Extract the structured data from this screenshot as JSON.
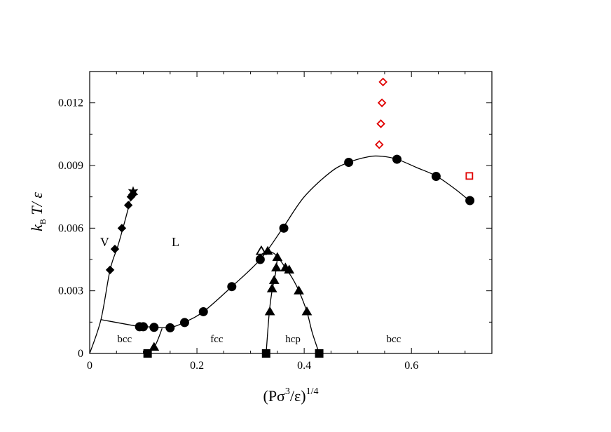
{
  "chart_data": {
    "type": "scatter",
    "title": "",
    "xlabel": {
      "main": "(Pσ",
      "sup1": "3",
      "mid": "/ε)",
      "sup2": "1/4"
    },
    "ylabel": {
      "k": "k",
      "sub": "B",
      "rest": " T/ ε"
    },
    "xlim": [
      0,
      0.75
    ],
    "ylim": [
      0,
      0.0135
    ],
    "x_ticks": [
      {
        "value": 0,
        "label": "0"
      },
      {
        "value": 0.2,
        "label": "0.2"
      },
      {
        "value": 0.4,
        "label": "0.4"
      },
      {
        "value": 0.6,
        "label": "0.6"
      }
    ],
    "y_ticks": [
      {
        "value": 0,
        "label": "0"
      },
      {
        "value": 0.003,
        "label": "0.003"
      },
      {
        "value": 0.006,
        "label": "0.006"
      },
      {
        "value": 0.009,
        "label": "0.009"
      },
      {
        "value": 0.012,
        "label": "0.012"
      }
    ],
    "grid": false,
    "region_labels": [
      {
        "text": "V",
        "x": 0.028,
        "y": 0.0053,
        "style": "phase"
      },
      {
        "text": "L",
        "x": 0.16,
        "y": 0.0053,
        "style": "phase"
      },
      {
        "text": "bcc",
        "x": 0.065,
        "y": 0.0007,
        "style": "region"
      },
      {
        "text": "fcc",
        "x": 0.237,
        "y": 0.0007,
        "style": "region"
      },
      {
        "text": "hcp",
        "x": 0.379,
        "y": 0.0007,
        "style": "region"
      },
      {
        "text": "bcc",
        "x": 0.567,
        "y": 0.0007,
        "style": "region"
      }
    ],
    "lines": [
      {
        "name": "vapor-liquid",
        "points": [
          [
            0.0,
            0.0
          ],
          [
            0.021,
            0.00162
          ],
          [
            0.038,
            0.004
          ],
          [
            0.052,
            0.0051
          ],
          [
            0.062,
            0.006
          ],
          [
            0.073,
            0.00705
          ],
          [
            0.078,
            0.0076
          ],
          [
            0.082,
            0.0077
          ]
        ]
      },
      {
        "name": "vapor-bcc-triple-line",
        "points": [
          [
            0.021,
            0.00162
          ],
          [
            0.09,
            0.0013
          ],
          [
            0.105,
            0.00128
          ]
        ]
      },
      {
        "name": "melting",
        "points": [
          [
            0.09,
            0.00128
          ],
          [
            0.105,
            0.00128
          ],
          [
            0.12,
            0.00126
          ],
          [
            0.15,
            0.00124
          ],
          [
            0.177,
            0.0015
          ],
          [
            0.212,
            0.002
          ],
          [
            0.265,
            0.0032
          ],
          [
            0.318,
            0.0045
          ],
          [
            0.36,
            0.006
          ],
          [
            0.4,
            0.0075
          ],
          [
            0.45,
            0.0087
          ],
          [
            0.483,
            0.00915
          ],
          [
            0.52,
            0.00942
          ],
          [
            0.545,
            0.00944
          ],
          [
            0.573,
            0.0093
          ],
          [
            0.61,
            0.0089
          ],
          [
            0.646,
            0.0085
          ],
          [
            0.68,
            0.0079
          ],
          [
            0.709,
            0.0073
          ]
        ]
      },
      {
        "name": "bcc-fcc",
        "points": [
          [
            0.108,
            0.0
          ],
          [
            0.12,
            0.0003
          ],
          [
            0.127,
            0.00065
          ],
          [
            0.135,
            0.0012
          ]
        ]
      },
      {
        "name": "fcc-hcp",
        "points": [
          [
            0.329,
            0.0
          ],
          [
            0.335,
            0.002
          ],
          [
            0.34,
            0.003
          ],
          [
            0.345,
            0.0036
          ],
          [
            0.348,
            0.0041
          ],
          [
            0.35,
            0.0046
          ]
        ]
      },
      {
        "name": "hcp-bcc-dome",
        "points": [
          [
            0.318,
            0.0047
          ],
          [
            0.332,
            0.0049
          ],
          [
            0.348,
            0.0047
          ],
          [
            0.365,
            0.0041
          ],
          [
            0.378,
            0.0036
          ],
          [
            0.39,
            0.003
          ],
          [
            0.405,
            0.002
          ],
          [
            0.415,
            0.001
          ],
          [
            0.428,
            0.0
          ]
        ]
      }
    ],
    "series": [
      {
        "name": "circles",
        "marker": "circle",
        "color": "#000000",
        "fill": true,
        "points": [
          [
            0.093,
            0.00128
          ],
          [
            0.1,
            0.00128
          ],
          [
            0.12,
            0.00125
          ],
          [
            0.15,
            0.00123
          ],
          [
            0.177,
            0.00148
          ],
          [
            0.212,
            0.002
          ],
          [
            0.265,
            0.0032
          ],
          [
            0.318,
            0.0045
          ],
          [
            0.362,
            0.006
          ],
          [
            0.483,
            0.00915
          ],
          [
            0.573,
            0.0093
          ],
          [
            0.646,
            0.00848
          ],
          [
            0.709,
            0.00732
          ]
        ]
      },
      {
        "name": "diamonds",
        "marker": "diamond",
        "color": "#000000",
        "fill": true,
        "points": [
          [
            0.038,
            0.004
          ],
          [
            0.047,
            0.005
          ],
          [
            0.06,
            0.006
          ],
          [
            0.072,
            0.0071
          ],
          [
            0.077,
            0.0075
          ],
          [
            0.08,
            0.0076
          ]
        ]
      },
      {
        "name": "star",
        "marker": "star",
        "color": "#000000",
        "fill": true,
        "points": [
          [
            0.081,
            0.00773
          ]
        ]
      },
      {
        "name": "triangles",
        "marker": "triangle",
        "color": "#000000",
        "fill": true,
        "points": [
          [
            0.12,
            0.0003
          ],
          [
            0.336,
            0.002
          ],
          [
            0.34,
            0.0031
          ],
          [
            0.344,
            0.0035
          ],
          [
            0.348,
            0.0041
          ],
          [
            0.35,
            0.0046
          ],
          [
            0.332,
            0.0049
          ],
          [
            0.365,
            0.0041
          ],
          [
            0.372,
            0.004
          ],
          [
            0.39,
            0.003
          ],
          [
            0.405,
            0.002
          ]
        ]
      },
      {
        "name": "open-triangle",
        "marker": "triangle",
        "color": "#000000",
        "fill": false,
        "points": [
          [
            0.32,
            0.0049
          ]
        ]
      },
      {
        "name": "squares",
        "marker": "square",
        "color": "#000000",
        "fill": true,
        "points": [
          [
            0.108,
            0.0
          ],
          [
            0.329,
            0.0
          ],
          [
            0.428,
            0.0
          ]
        ]
      },
      {
        "name": "red-diamonds",
        "marker": "diamond",
        "color": "#e00000",
        "fill": false,
        "points": [
          [
            0.54,
            0.01
          ],
          [
            0.543,
            0.011
          ],
          [
            0.545,
            0.012
          ],
          [
            0.547,
            0.013
          ]
        ]
      },
      {
        "name": "red-square",
        "marker": "square",
        "color": "#e00000",
        "fill": false,
        "points": [
          [
            0.708,
            0.0085
          ]
        ]
      }
    ]
  }
}
